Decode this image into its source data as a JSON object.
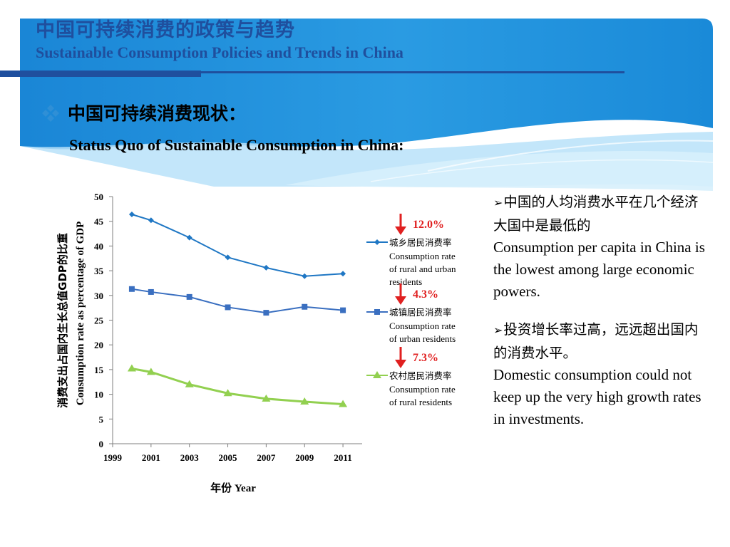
{
  "header": {
    "title_cn": "中国可持续消费的政策与趋势",
    "title_en": "Sustainable Consumption Policies and Trends in China"
  },
  "section": {
    "heading_cn": "中国可持续消费现状：",
    "heading_en": "Status Quo of Sustainable Consumption in China:"
  },
  "chart_data": {
    "type": "line",
    "x": [
      2000,
      2001,
      2003,
      2005,
      2007,
      2009,
      2011
    ],
    "x_ticks": [
      "1999",
      "2001",
      "2003",
      "2005",
      "2007",
      "2009",
      "2011"
    ],
    "xlim": [
      1999,
      2012
    ],
    "ylim": [
      0,
      50
    ],
    "y_ticks": [
      "0",
      "5",
      "10",
      "15",
      "20",
      "25",
      "30",
      "35",
      "40",
      "45",
      "50"
    ],
    "xlabel": "年份 Year",
    "ylabel_cn": "消费支出占国内生长总值GDP的比重",
    "ylabel_en": "Consumption rate as percentage of GDP",
    "grid": false,
    "legend_position": "right",
    "series": [
      {
        "name_cn": "城乡居民消费率",
        "name_en": [
          "Consumption rate",
          "of rural and urban",
          "residents"
        ],
        "values": [
          46.4,
          45.2,
          41.7,
          37.7,
          35.6,
          33.9,
          34.4
        ],
        "color": "#1f77c4",
        "marker": "diamond",
        "decline": "12.0%"
      },
      {
        "name_cn": "城镇居民消费率",
        "name_en": [
          "Consumption rate",
          "of urban residents"
        ],
        "values": [
          31.3,
          30.7,
          29.7,
          27.6,
          26.5,
          27.7,
          27.0
        ],
        "color": "#3a6fc0",
        "marker": "square",
        "decline": "4.3%"
      },
      {
        "name_cn": "农村居民消费率",
        "name_en": [
          "Consumption rate",
          "of rural residents"
        ],
        "values": [
          15.2,
          14.5,
          12.0,
          10.2,
          9.1,
          8.5,
          8.0
        ],
        "color": "#92d050",
        "marker": "triangle",
        "decline": "7.3%"
      }
    ],
    "decline_arrow_color": "#e02020"
  },
  "points": [
    {
      "arrow": "➢",
      "cn": "中国的人均消费水平在几个经济大国中是最低的",
      "en": "Consumption per capita in China is the lowest among large economic powers."
    },
    {
      "arrow": "➢",
      "cn": "投资增长率过高，远远超出国内的消费水平。",
      "en": "Domestic consumption could not keep up the very high growth rates in investments."
    }
  ],
  "colors": {
    "title": "#1f4f9e",
    "header_blue": "#1e8fdb",
    "header_light": "#8fd0f5",
    "header_bar": "#1f4f9e",
    "axis": "#7f7f7f"
  },
  "icons": {
    "bullet": "diamond-cluster-icon",
    "point_arrow": "arrowhead-bullet-icon",
    "decline": "down-arrow-icon"
  }
}
